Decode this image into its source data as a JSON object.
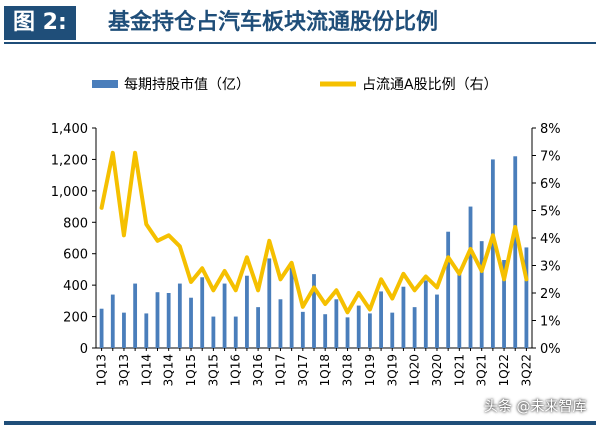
{
  "figure": {
    "label": "图 2:",
    "title": "基金持仓占汽车板块流通股份比例"
  },
  "watermark": "头条 @未来智库",
  "colors": {
    "bar": "#4a7ebb",
    "line": "#f5c000",
    "title": "#1f4e79"
  },
  "chart_data": {
    "type": "bar+line",
    "title": "基金持仓占汽车板块流通股份比例",
    "categories": [
      "1Q13",
      "2Q13",
      "3Q13",
      "4Q13",
      "1Q14",
      "2Q14",
      "3Q14",
      "4Q14",
      "1Q15",
      "2Q15",
      "3Q15",
      "4Q15",
      "1Q16",
      "2Q16",
      "3Q16",
      "4Q16",
      "1Q17",
      "2Q17",
      "3Q17",
      "4Q17",
      "1Q18",
      "2Q18",
      "3Q18",
      "4Q18",
      "1Q19",
      "2Q19",
      "3Q19",
      "4Q19",
      "1Q20",
      "2Q20",
      "3Q20",
      "4Q20",
      "1Q21",
      "2Q21",
      "3Q21",
      "4Q21",
      "1Q22",
      "2Q22",
      "3Q22"
    ],
    "x_tick_labels": [
      "1Q13",
      "3Q13",
      "1Q14",
      "3Q14",
      "1Q15",
      "3Q15",
      "1Q16",
      "3Q16",
      "1Q17",
      "3Q17",
      "1Q18",
      "3Q18",
      "1Q19",
      "3Q19",
      "1Q20",
      "3Q20",
      "1Q21",
      "3Q21",
      "1Q22",
      "3Q22"
    ],
    "series": [
      {
        "name": "每期持股市值（亿）",
        "type": "bar",
        "axis": "left",
        "values": [
          250,
          340,
          225,
          410,
          220,
          355,
          350,
          410,
          320,
          450,
          200,
          410,
          200,
          460,
          260,
          570,
          310,
          510,
          230,
          470,
          215,
          310,
          195,
          270,
          220,
          360,
          225,
          390,
          260,
          430,
          340,
          740,
          470,
          900,
          680,
          1200,
          560,
          1220,
          640
        ]
      },
      {
        "name": "占流通A股比例（右）",
        "type": "line",
        "axis": "right",
        "values": [
          5.1,
          7.1,
          4.1,
          7.1,
          4.5,
          3.9,
          4.1,
          3.7,
          2.4,
          2.9,
          2.1,
          2.8,
          2.1,
          3.3,
          2.1,
          3.9,
          2.5,
          3.1,
          1.5,
          2.2,
          1.6,
          2.1,
          1.3,
          2.0,
          1.4,
          2.5,
          1.8,
          2.7,
          2.1,
          2.6,
          2.2,
          3.3,
          2.7,
          3.6,
          2.8,
          4.1,
          2.5,
          4.4,
          2.5
        ]
      }
    ],
    "y_left": {
      "ticks": [
        "0",
        "200",
        "400",
        "600",
        "800",
        "1,000",
        "1,200",
        "1,400"
      ],
      "min": 0,
      "max": 1400,
      "step": 200
    },
    "y_right": {
      "ticks": [
        "0%",
        "1%",
        "2%",
        "3%",
        "4%",
        "5%",
        "6%",
        "7%",
        "8%"
      ],
      "min": 0,
      "max": 8,
      "step": 1
    },
    "legend_position": "top",
    "grid": false
  }
}
